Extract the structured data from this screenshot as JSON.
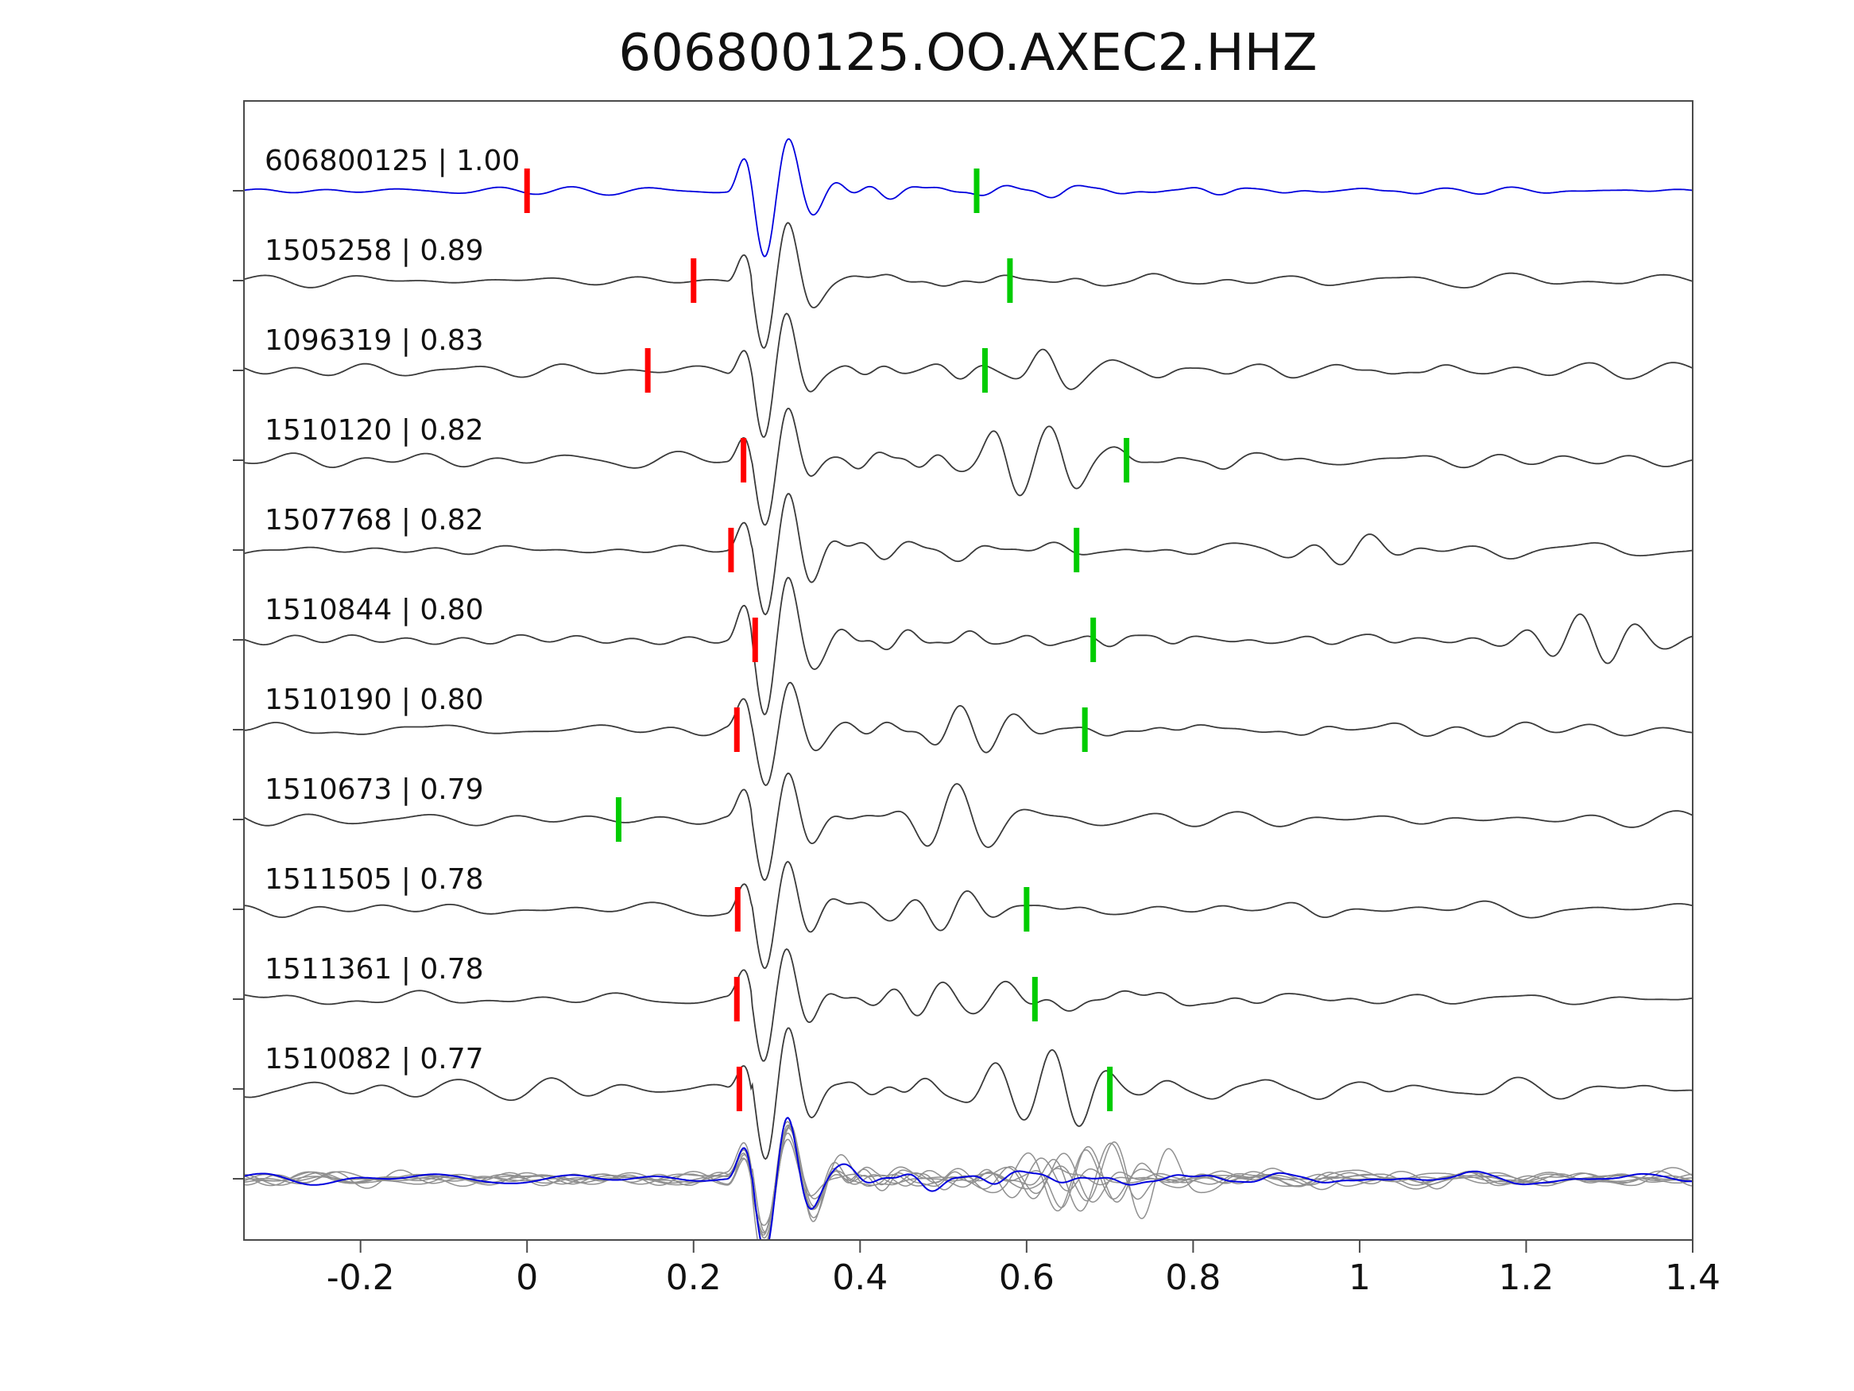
{
  "title": "606800125.OO.AXEC2.HHZ",
  "chart_data": {
    "type": "line",
    "title": "606800125.OO.AXEC2.HHZ",
    "subtitle": "",
    "xlabel": "",
    "ylabel": "",
    "grid": false,
    "legend": "none",
    "xlim": [
      -0.34,
      1.4
    ],
    "x_ticks": [
      -0.2,
      0,
      0.2,
      0.4,
      0.6,
      0.8,
      1,
      1.2,
      1.4
    ],
    "x_tick_labels": [
      "-0.2",
      "0",
      "0.2",
      "0.4",
      "0.6",
      "0.8",
      "1",
      "1.2",
      "1.4"
    ],
    "colors": {
      "template_trace": "#0000dd",
      "detection_trace": "#3a3a3a",
      "overlay_gray": "#909090",
      "red_pick": "#ff0000",
      "green_pick": "#00cc00",
      "axis": "#4a4a4a",
      "text": "#111111"
    },
    "traces": [
      {
        "id": "606800125",
        "correlation": 1.0,
        "label": "606800125 | 1.00",
        "kind": "template",
        "red_pick": 0.0,
        "green_pick": 0.54,
        "onset": 0.27,
        "noise_amp": 4,
        "coda_amp": 14,
        "onset_amp": 88,
        "burst": null,
        "seed": 11
      },
      {
        "id": "1505258",
        "correlation": 0.89,
        "label": "1505258 | 0.89",
        "kind": "detection",
        "red_pick": 0.2,
        "green_pick": 0.58,
        "onset": 0.27,
        "noise_amp": 7,
        "coda_amp": 12,
        "onset_amp": 78,
        "burst": null,
        "seed": 22
      },
      {
        "id": "1096319",
        "correlation": 0.83,
        "label": "1096319 | 0.83",
        "kind": "detection",
        "red_pick": 0.145,
        "green_pick": 0.55,
        "onset": 0.27,
        "noise_amp": 8,
        "coda_amp": 12,
        "onset_amp": 72,
        "burst": {
          "x": 0.62,
          "amp": 20
        },
        "seed": 33
      },
      {
        "id": "1510120",
        "correlation": 0.82,
        "label": "1510120 | 0.82",
        "kind": "detection",
        "red_pick": 0.26,
        "green_pick": 0.72,
        "onset": 0.27,
        "noise_amp": 9,
        "coda_amp": 12,
        "onset_amp": 68,
        "burst": {
          "x": 0.61,
          "amp": 48
        },
        "seed": 44
      },
      {
        "id": "1507768",
        "correlation": 0.82,
        "label": "1507768 | 0.82",
        "kind": "detection",
        "red_pick": 0.245,
        "green_pick": 0.66,
        "onset": 0.27,
        "noise_amp": 8,
        "coda_amp": 12,
        "onset_amp": 74,
        "burst": {
          "x": 0.98,
          "amp": 18
        },
        "seed": 55
      },
      {
        "id": "1510844",
        "correlation": 0.8,
        "label": "1510844 | 0.80",
        "kind": "detection",
        "red_pick": 0.274,
        "green_pick": 0.68,
        "onset": 0.27,
        "noise_amp": 10,
        "coda_amp": 13,
        "onset_amp": 84,
        "burst": {
          "x": 1.28,
          "amp": 34
        },
        "seed": 66
      },
      {
        "id": "1510190",
        "correlation": 0.8,
        "label": "1510190 | 0.80",
        "kind": "detection",
        "red_pick": 0.252,
        "green_pick": 0.67,
        "onset": 0.27,
        "noise_amp": 8,
        "coda_amp": 12,
        "onset_amp": 74,
        "burst": {
          "x": 0.52,
          "amp": 30
        },
        "seed": 77
      },
      {
        "id": "1510673",
        "correlation": 0.79,
        "label": "1510673 | 0.79",
        "kind": "detection",
        "red_pick": null,
        "green_pick": 0.11,
        "onset": 0.27,
        "noise_amp": 8,
        "coda_amp": 12,
        "onset_amp": 70,
        "burst": {
          "x": 0.5,
          "amp": 34
        },
        "seed": 88
      },
      {
        "id": "1511505",
        "correlation": 0.78,
        "label": "1511505 | 0.78",
        "kind": "detection",
        "red_pick": 0.253,
        "green_pick": 0.6,
        "onset": 0.27,
        "noise_amp": 8,
        "coda_amp": 12,
        "onset_amp": 72,
        "burst": {
          "x": 0.5,
          "amp": 28
        },
        "seed": 99
      },
      {
        "id": "1511361",
        "correlation": 0.78,
        "label": "1511361 | 0.78",
        "kind": "detection",
        "red_pick": 0.252,
        "green_pick": 0.61,
        "onset": 0.27,
        "noise_amp": 8,
        "coda_amp": 12,
        "onset_amp": 74,
        "burst": {
          "x": 0.52,
          "amp": 24
        },
        "seed": 110
      },
      {
        "id": "1510082",
        "correlation": 0.77,
        "label": "1510082 | 0.77",
        "kind": "detection",
        "red_pick": 0.255,
        "green_pick": 0.7,
        "onset": 0.27,
        "noise_amp": 11,
        "coda_amp": 16,
        "onset_amp": 78,
        "burst": {
          "x": 0.63,
          "amp": 58
        },
        "seed": 121
      }
    ],
    "overlay_stack": {
      "description": "all detections overlaid (gray) with template (blue)",
      "onset": 0.27,
      "gray_seeds": [
        201,
        202,
        203,
        204,
        205,
        206,
        207
      ],
      "gray_noise_amp": 8,
      "gray_coda_amp": 20,
      "gray_onset_amp": 70,
      "blue_seed": 300,
      "blue_noise_amp": 6,
      "blue_coda_amp": 14,
      "blue_onset_amp": 88
    }
  }
}
